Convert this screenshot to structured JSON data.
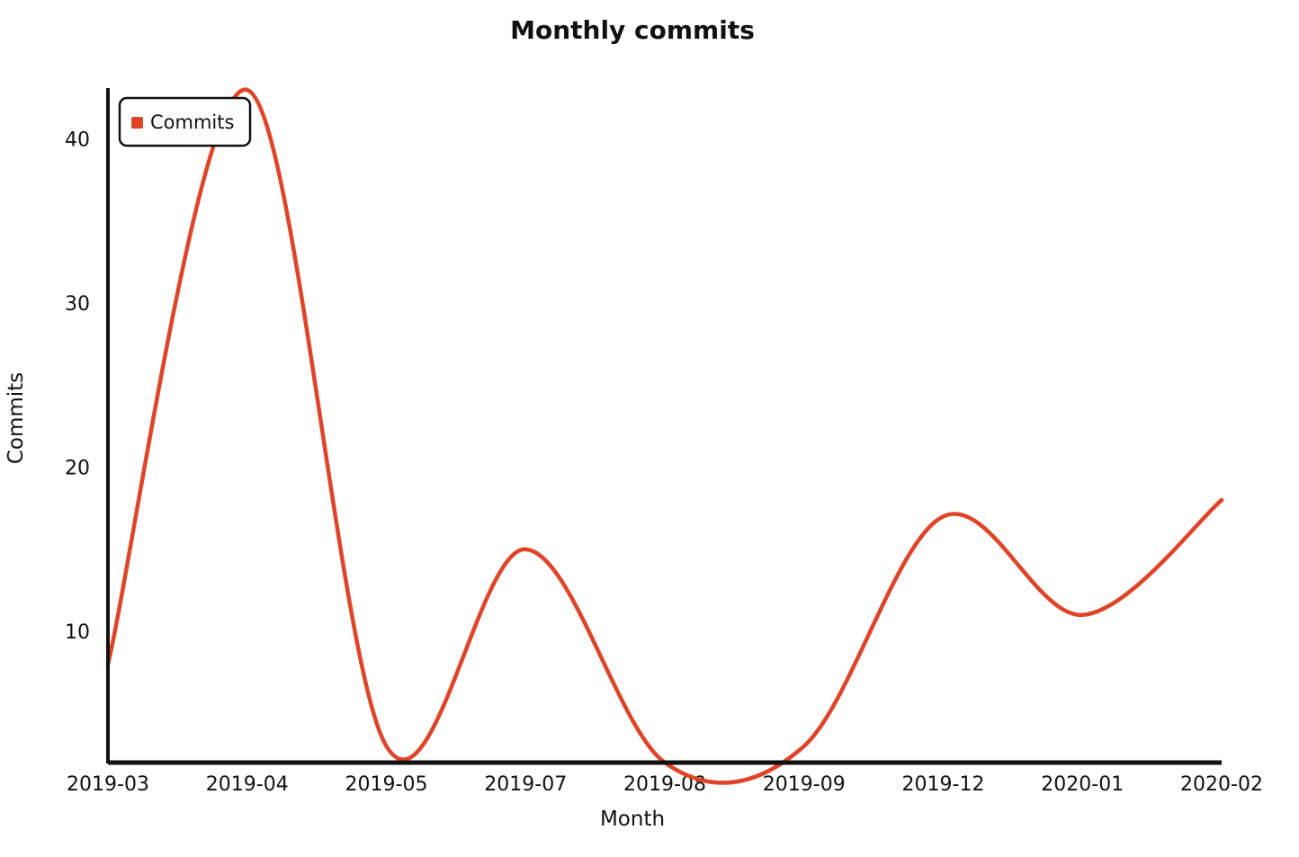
{
  "chart_data": {
    "type": "line",
    "title": "Monthly commits",
    "xlabel": "Month",
    "ylabel": "Commits",
    "categories": [
      "2019-03",
      "2019-04",
      "2019-05",
      "2019-07",
      "2019-08",
      "2019-09",
      "2019-12",
      "2020-01",
      "2020-02"
    ],
    "series": [
      {
        "name": "Commits",
        "color": "#e04428",
        "values": [
          8,
          43,
          3,
          15,
          2,
          3,
          17,
          11,
          18
        ]
      }
    ],
    "yticks": [
      10,
      20,
      30,
      40
    ],
    "ylim": [
      2,
      43
    ],
    "grid": false,
    "legend": "top-left",
    "smooth": true
  }
}
